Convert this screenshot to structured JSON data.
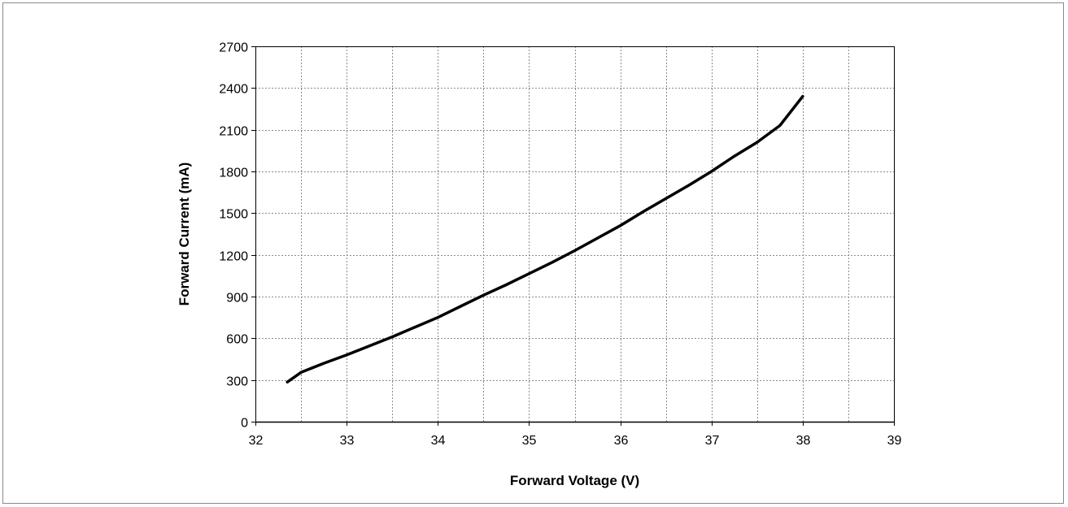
{
  "chart_data": {
    "type": "line",
    "title": "",
    "xlabel": "Forward Voltage (V)",
    "ylabel": "Forward Current (mA)",
    "xlim": [
      32,
      39
    ],
    "ylim": [
      0,
      2700
    ],
    "x_ticks": [
      32,
      33,
      34,
      35,
      36,
      37,
      38,
      39
    ],
    "y_ticks": [
      0,
      300,
      600,
      900,
      1200,
      1500,
      1800,
      2100,
      2400,
      2700
    ],
    "x_minor_step": 0.5,
    "grid": true,
    "legend": "none",
    "series": [
      {
        "color": "#000000",
        "x": [
          32.35,
          32.5,
          32.75,
          33.0,
          33.25,
          33.5,
          33.75,
          34.0,
          34.25,
          34.5,
          34.75,
          35.0,
          35.25,
          35.5,
          35.75,
          36.0,
          36.25,
          36.5,
          36.75,
          37.0,
          37.25,
          37.5,
          37.75,
          38.0
        ],
        "y": [
          285,
          355,
          420,
          480,
          545,
          610,
          680,
          750,
          830,
          910,
          985,
          1065,
          1145,
          1230,
          1320,
          1410,
          1510,
          1605,
          1700,
          1800,
          1910,
          2010,
          2130,
          2340
        ]
      }
    ]
  }
}
